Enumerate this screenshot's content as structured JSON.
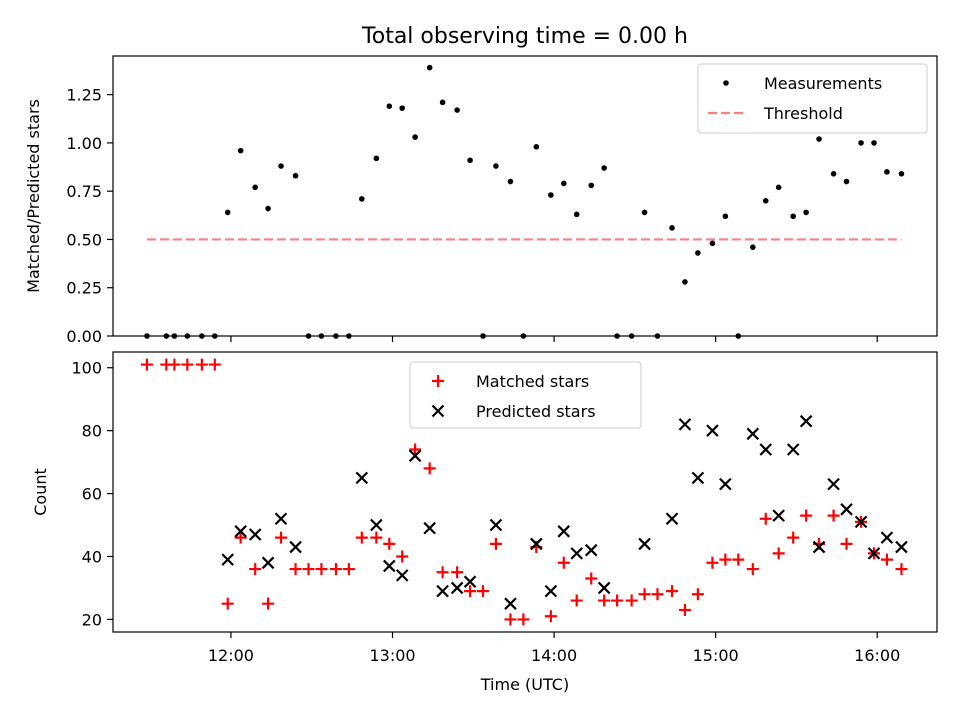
{
  "title": "Total observing time = 0.00 h",
  "x_ticks": [
    {
      "hour": 12,
      "label": "12:00"
    },
    {
      "hour": 13,
      "label": "13:00"
    },
    {
      "hour": 14,
      "label": "14:00"
    },
    {
      "hour": 15,
      "label": "15:00"
    },
    {
      "hour": 16,
      "label": "16:00"
    }
  ],
  "xlim": [
    11.27,
    16.37
  ],
  "colors": {
    "measurements": "#000000",
    "threshold": "#ff7f7f",
    "matched": "#ff0000",
    "predicted": "#000000"
  },
  "chart_data": [
    {
      "type": "scatter",
      "ylabel": "Matched/Predicted stars",
      "ylim": [
        0,
        1.45
      ],
      "y_ticks": [
        {
          "value": 0,
          "label": "0.00"
        },
        {
          "value": 0.25,
          "label": "0.25"
        },
        {
          "value": 0.5,
          "label": "0.50"
        },
        {
          "value": 0.75,
          "label": "0.75"
        },
        {
          "value": 1.0,
          "label": "1.00"
        },
        {
          "value": 1.25,
          "label": "1.25"
        }
      ],
      "legend": {
        "position": "top-right",
        "entries": [
          "Measurements",
          "Threshold"
        ]
      },
      "series": [
        {
          "name": "Measurements",
          "marker": "dot",
          "points": [
            [
              11.48,
              0
            ],
            [
              11.6,
              0
            ],
            [
              11.65,
              0
            ],
            [
              11.73,
              0
            ],
            [
              11.82,
              0
            ],
            [
              11.9,
              0
            ],
            [
              11.98,
              0.64
            ],
            [
              12.06,
              0.96
            ],
            [
              12.15,
              0.77
            ],
            [
              12.23,
              0.66
            ],
            [
              12.31,
              0.88
            ],
            [
              12.4,
              0.83
            ],
            [
              12.48,
              0
            ],
            [
              12.56,
              0
            ],
            [
              12.65,
              0
            ],
            [
              12.73,
              0
            ],
            [
              12.81,
              0.71
            ],
            [
              12.9,
              0.92
            ],
            [
              12.98,
              1.19
            ],
            [
              13.06,
              1.18
            ],
            [
              13.14,
              1.03
            ],
            [
              13.23,
              1.39
            ],
            [
              13.31,
              1.21
            ],
            [
              13.4,
              1.17
            ],
            [
              13.48,
              0.91
            ],
            [
              13.56,
              0
            ],
            [
              13.64,
              0.88
            ],
            [
              13.73,
              0.8
            ],
            [
              13.81,
              0
            ],
            [
              13.89,
              0.98
            ],
            [
              13.98,
              0.73
            ],
            [
              14.06,
              0.79
            ],
            [
              14.14,
              0.63
            ],
            [
              14.23,
              0.78
            ],
            [
              14.31,
              0.87
            ],
            [
              14.39,
              0
            ],
            [
              14.48,
              0
            ],
            [
              14.56,
              0.64
            ],
            [
              14.64,
              0
            ],
            [
              14.73,
              0.56
            ],
            [
              14.81,
              0.28
            ],
            [
              14.89,
              0.43
            ],
            [
              14.98,
              0.48
            ],
            [
              15.06,
              0.62
            ],
            [
              15.14,
              0
            ],
            [
              15.23,
              0.46
            ],
            [
              15.31,
              0.7
            ],
            [
              15.39,
              0.77
            ],
            [
              15.48,
              0.62
            ],
            [
              15.56,
              0.64
            ],
            [
              15.64,
              1.02
            ],
            [
              15.73,
              0.84
            ],
            [
              15.81,
              0.8
            ],
            [
              15.9,
              1.0
            ],
            [
              15.98,
              1.0
            ],
            [
              16.06,
              0.85
            ],
            [
              16.15,
              0.84
            ]
          ]
        },
        {
          "name": "Threshold",
          "marker": "dashed-line",
          "y": 0.5,
          "x_range": [
            11.48,
            16.15
          ]
        }
      ]
    },
    {
      "type": "scatter",
      "xlabel": "Time (UTC)",
      "ylabel": "Count",
      "ylim": [
        16,
        105
      ],
      "y_ticks": [
        {
          "value": 20,
          "label": "20"
        },
        {
          "value": 40,
          "label": "40"
        },
        {
          "value": 60,
          "label": "60"
        },
        {
          "value": 80,
          "label": "80"
        },
        {
          "value": 100,
          "label": "100"
        }
      ],
      "legend": {
        "position": "top-center",
        "entries": [
          "Matched stars",
          "Predicted stars"
        ]
      },
      "series": [
        {
          "name": "Matched stars",
          "marker": "plus",
          "points": [
            [
              11.48,
              101
            ],
            [
              11.6,
              101
            ],
            [
              11.65,
              101
            ],
            [
              11.73,
              101
            ],
            [
              11.82,
              101
            ],
            [
              11.9,
              101
            ],
            [
              11.98,
              25
            ],
            [
              12.06,
              46
            ],
            [
              12.15,
              36
            ],
            [
              12.23,
              25
            ],
            [
              12.31,
              46
            ],
            [
              12.4,
              36
            ],
            [
              12.48,
              36
            ],
            [
              12.56,
              36
            ],
            [
              12.65,
              36
            ],
            [
              12.73,
              36
            ],
            [
              12.81,
              46
            ],
            [
              12.9,
              46
            ],
            [
              12.98,
              44
            ],
            [
              13.06,
              40
            ],
            [
              13.14,
              74
            ],
            [
              13.23,
              68
            ],
            [
              13.31,
              35
            ],
            [
              13.4,
              35
            ],
            [
              13.48,
              29
            ],
            [
              13.56,
              29
            ],
            [
              13.64,
              44
            ],
            [
              13.73,
              20
            ],
            [
              13.81,
              20
            ],
            [
              13.89,
              43
            ],
            [
              13.98,
              21
            ],
            [
              14.06,
              38
            ],
            [
              14.14,
              26
            ],
            [
              14.23,
              33
            ],
            [
              14.31,
              26
            ],
            [
              14.39,
              26
            ],
            [
              14.48,
              26
            ],
            [
              14.56,
              28
            ],
            [
              14.64,
              28
            ],
            [
              14.73,
              29
            ],
            [
              14.81,
              23
            ],
            [
              14.89,
              28
            ],
            [
              14.98,
              38
            ],
            [
              15.06,
              39
            ],
            [
              15.14,
              39
            ],
            [
              15.23,
              36
            ],
            [
              15.31,
              52
            ],
            [
              15.39,
              41
            ],
            [
              15.48,
              46
            ],
            [
              15.56,
              53
            ],
            [
              15.64,
              44
            ],
            [
              15.73,
              53
            ],
            [
              15.81,
              44
            ],
            [
              15.9,
              51
            ],
            [
              15.98,
              41
            ],
            [
              16.06,
              39
            ],
            [
              16.15,
              36
            ]
          ]
        },
        {
          "name": "Predicted stars",
          "marker": "x",
          "points": [
            [
              11.98,
              39
            ],
            [
              12.06,
              48
            ],
            [
              12.15,
              47
            ],
            [
              12.23,
              38
            ],
            [
              12.31,
              52
            ],
            [
              12.4,
              43
            ],
            [
              12.81,
              65
            ],
            [
              12.9,
              50
            ],
            [
              12.98,
              37
            ],
            [
              13.06,
              34
            ],
            [
              13.14,
              72
            ],
            [
              13.23,
              49
            ],
            [
              13.31,
              29
            ],
            [
              13.4,
              30
            ],
            [
              13.48,
              32
            ],
            [
              13.64,
              50
            ],
            [
              13.73,
              25
            ],
            [
              13.89,
              44
            ],
            [
              13.98,
              29
            ],
            [
              14.06,
              48
            ],
            [
              14.14,
              41
            ],
            [
              14.23,
              42
            ],
            [
              14.31,
              30
            ],
            [
              14.56,
              44
            ],
            [
              14.73,
              52
            ],
            [
              14.81,
              82
            ],
            [
              14.89,
              65
            ],
            [
              14.98,
              80
            ],
            [
              15.06,
              63
            ],
            [
              15.23,
              79
            ],
            [
              15.31,
              74
            ],
            [
              15.39,
              53
            ],
            [
              15.48,
              74
            ],
            [
              15.56,
              83
            ],
            [
              15.64,
              43
            ],
            [
              15.73,
              63
            ],
            [
              15.81,
              55
            ],
            [
              15.9,
              51
            ],
            [
              15.98,
              41
            ],
            [
              16.06,
              46
            ],
            [
              16.15,
              43
            ]
          ]
        }
      ]
    }
  ]
}
